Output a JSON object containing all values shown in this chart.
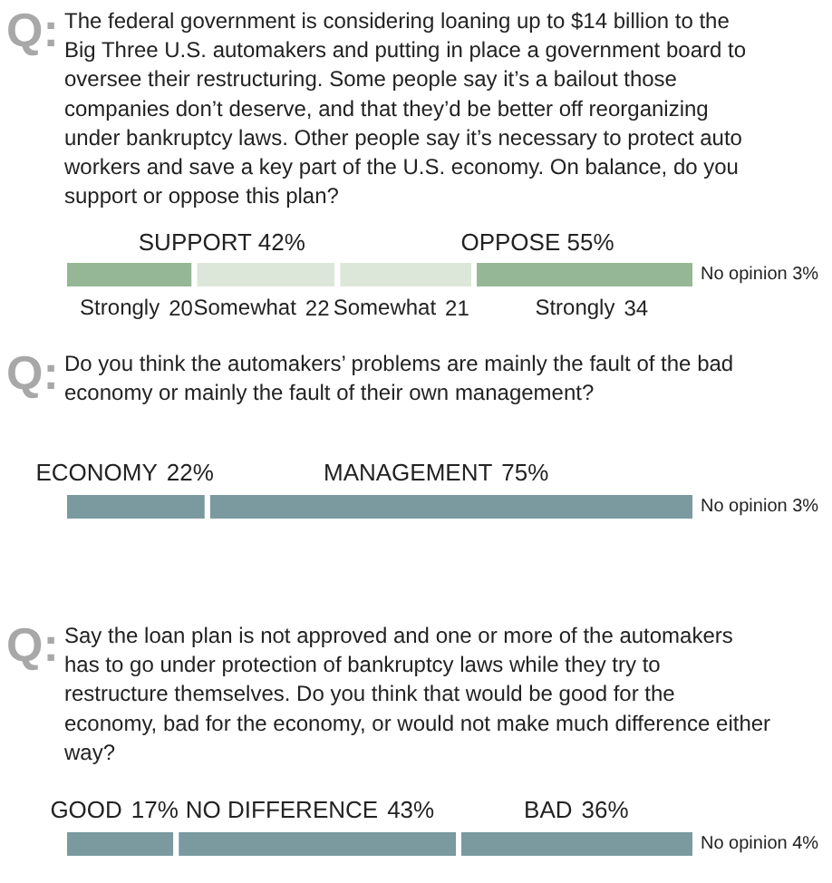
{
  "chart_data": [
    {
      "type": "bar",
      "orientation": "horizontal",
      "stacked": true,
      "title": "The federal government is considering loaning up to $14 billion to the Big Three U.S. automakers and putting in place a government board to oversee their restructuring. Some people say it’s a bailout those companies don’t deserve, and that they’d be better off reorganizing under bankruptcy laws. Other people say it’s necessary to protect auto workers and save a key part of the U.S. economy. On balance, do you support or oppose this plan?",
      "categories": [
        null
      ],
      "tick_labels": false,
      "data_labels": true,
      "series": [
        {
          "name": "Strongly",
          "color": "#95b795",
          "values": [
            20
          ]
        },
        {
          "name": "Somewhat",
          "color": "#dde7d9",
          "values": [
            22
          ]
        },
        {
          "name": "Somewhat",
          "color": "#dde7d9",
          "values": [
            21
          ]
        },
        {
          "name": "Strongly",
          "color": "#95b795",
          "values": [
            34
          ]
        }
      ],
      "annotations": [
        "Q:",
        "No opinion 3%",
        "SUPPORT 42%",
        "OPPOSE 55%"
      ]
    },
    {
      "type": "bar",
      "orientation": "horizontal",
      "stacked": true,
      "title": "Do you think the automakers’ problems are mainly the fault of the bad economy or mainly the fault of their own management?",
      "categories": [
        null
      ],
      "tick_labels": false,
      "series": [
        {
          "name": "ECONOMY",
          "color": "#7a9aa0",
          "values": [
            22
          ],
          "value_labels": [
            "22%"
          ]
        },
        {
          "name": "MANAGEMENT",
          "color": "#7a9aa0",
          "values": [
            75
          ],
          "value_labels": [
            "75%"
          ]
        }
      ],
      "annotations": [
        "Q:",
        "No opinion 3%"
      ]
    },
    {
      "type": "bar",
      "orientation": "horizontal",
      "stacked": true,
      "title": "Say the loan plan is not approved and one or more of the automakers has to go under protection of bankruptcy laws while they try to restructure themselves. Do you think that would be good for the economy, bad for the economy, or would not make much difference either way?",
      "categories": [
        null
      ],
      "tick_labels": false,
      "series": [
        {
          "name": "GOOD",
          "color": "#7a9aa0",
          "values": [
            17
          ],
          "value_labels": [
            "17%"
          ]
        },
        {
          "name": "NO DIFFERENCE",
          "color": "#7a9aa0",
          "values": [
            43
          ],
          "value_labels": [
            "43%"
          ]
        },
        {
          "name": "BAD",
          "color": "#7a9aa0",
          "values": [
            36
          ],
          "value_labels": [
            "36%"
          ]
        }
      ],
      "annotations": [
        "Q:",
        "No opinion 4%"
      ]
    }
  ]
}
